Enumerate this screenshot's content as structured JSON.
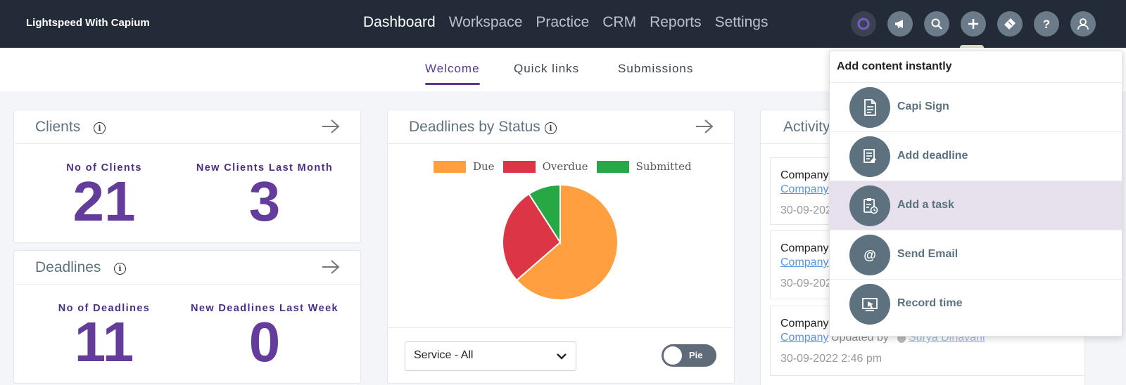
{
  "app": {
    "brand": "Lightspeed With Capium"
  },
  "main_nav": [
    {
      "label": "Dashboard",
      "active": true
    },
    {
      "label": "Workspace",
      "active": false
    },
    {
      "label": "Practice",
      "active": false
    },
    {
      "label": "CRM",
      "active": false
    },
    {
      "label": "Reports",
      "active": false
    },
    {
      "label": "Settings",
      "active": false
    }
  ],
  "top_icons": [
    "capium-logo-icon",
    "megaphone-icon",
    "search-icon",
    "plus-icon",
    "ticket-icon",
    "help-icon",
    "user-icon"
  ],
  "sub_nav": [
    {
      "label": "Welcome",
      "active": true
    },
    {
      "label": "Quick links",
      "active": false
    },
    {
      "label": "Submissions",
      "active": false
    }
  ],
  "clients_card": {
    "title": "Clients",
    "stats": [
      {
        "label": "No of Clients",
        "value": "21"
      },
      {
        "label": "New Clients Last Month",
        "value": "3"
      }
    ]
  },
  "deadlines_card": {
    "title": "Deadlines",
    "stats": [
      {
        "label": "No of Deadlines",
        "value": "11"
      },
      {
        "label": "New Deadlines Last Week",
        "value": "0"
      }
    ]
  },
  "status_card": {
    "title": "Deadlines by Status",
    "select_value": "Service - All",
    "toggle_label": "Pie"
  },
  "chart_data": {
    "type": "pie",
    "title": "",
    "categories": [
      "Due",
      "Overdue",
      "Submitted"
    ],
    "values": [
      63.6,
      27.3,
      9.1
    ],
    "colors": [
      "#ff9f40",
      "#dc3545",
      "#28a745"
    ],
    "legend": "top"
  },
  "activity_card": {
    "title": "Activity",
    "items": [
      {
        "title": "Company",
        "link": "Company",
        "updated_by": "",
        "user": "",
        "date": "30-09-202"
      },
      {
        "title": "Company",
        "link": "Company",
        "updated_by": "",
        "user": "",
        "date": "30-09-202"
      },
      {
        "title": "Company",
        "link": "Company",
        "updated_by": "Updated by",
        "user": "Surya Dinavani",
        "date": "30-09-2022 2:46 pm"
      }
    ]
  },
  "quick_add": {
    "title": "Add content instantly",
    "items": [
      {
        "label": "Capi Sign",
        "icon": "document-icon",
        "highlighted": false
      },
      {
        "label": "Add deadline",
        "icon": "deadline-icon",
        "highlighted": false
      },
      {
        "label": "Add a task",
        "icon": "task-icon",
        "highlighted": true
      },
      {
        "label": "Send Email",
        "icon": "at-sign-icon",
        "highlighted": false
      },
      {
        "label": "Record time",
        "icon": "record-time-icon",
        "highlighted": false
      }
    ]
  },
  "colors": {
    "topbar": "#232b39",
    "accent": "#5b3a8e",
    "stat_value": "#643c9c",
    "dropdown_highlight": "#e7e1ee"
  }
}
